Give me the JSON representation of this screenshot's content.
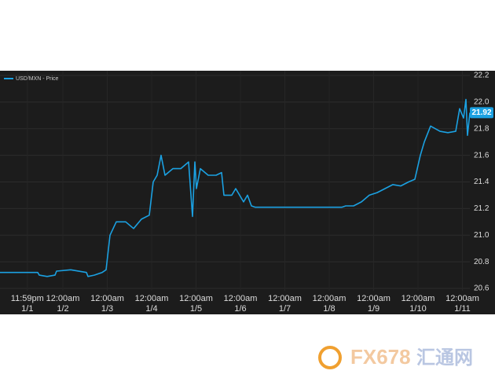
{
  "chart_data": {
    "type": "line",
    "legend": "USD/MXN - Price",
    "series": [
      {
        "name": "USD/MXN - Price",
        "color": "#1ba1e2",
        "x": [
          0.584,
          1.434,
          1.469,
          1.646,
          1.823,
          1.858,
          2.177,
          2.531,
          2.566,
          2.708,
          2.885,
          2.973,
          3.062,
          3.204,
          3.416,
          3.593,
          3.77,
          3.947,
          4.035,
          4.124,
          4.212,
          4.301,
          4.478,
          4.655,
          4.832,
          4.92,
          4.973,
          5.009,
          5.097,
          5.274,
          5.451,
          5.575,
          5.628,
          5.805,
          5.894,
          6.071,
          6.159,
          6.248,
          6.336,
          8.283,
          8.372,
          8.549,
          8.726,
          8.903,
          9.08,
          9.257,
          9.434,
          9.611,
          9.788,
          9.929,
          10.053,
          10.142,
          10.283,
          10.496,
          10.673,
          10.85,
          10.938,
          11.027,
          11.08,
          11.115,
          11.168
        ],
        "values": [
          20.72,
          20.72,
          20.7,
          20.69,
          20.7,
          20.73,
          20.74,
          20.72,
          20.69,
          20.7,
          20.72,
          20.74,
          21.0,
          21.1,
          21.1,
          21.05,
          21.12,
          21.15,
          21.4,
          21.45,
          21.6,
          21.45,
          21.5,
          21.5,
          21.55,
          21.14,
          21.55,
          21.35,
          21.5,
          21.45,
          21.45,
          21.47,
          21.3,
          21.3,
          21.35,
          21.25,
          21.3,
          21.22,
          21.21,
          21.21,
          21.22,
          21.22,
          21.25,
          21.3,
          21.32,
          21.35,
          21.38,
          21.37,
          21.4,
          21.42,
          21.6,
          21.7,
          21.82,
          21.78,
          21.77,
          21.78,
          21.95,
          21.88,
          22.02,
          21.75,
          21.92
        ]
      }
    ],
    "last_price": 21.92,
    "xlim": [
      0.584,
      11.168
    ],
    "xticks": [
      {
        "value": 1.2,
        "label": [
          "11:59pm",
          "1/1"
        ]
      },
      {
        "value": 2,
        "label": [
          "12:00am",
          "1/2"
        ]
      },
      {
        "value": 3,
        "label": [
          "12:00am",
          "1/3"
        ]
      },
      {
        "value": 4,
        "label": [
          "12:00am",
          "1/4"
        ]
      },
      {
        "value": 5,
        "label": [
          "12:00am",
          "1/5"
        ]
      },
      {
        "value": 6,
        "label": [
          "12:00am",
          "1/6"
        ]
      },
      {
        "value": 7,
        "label": [
          "12:00am",
          "1/7"
        ]
      },
      {
        "value": 8,
        "label": [
          "12:00am",
          "1/8"
        ]
      },
      {
        "value": 9,
        "label": [
          "12:00am",
          "1/9"
        ]
      },
      {
        "value": 10,
        "label": [
          "12:00am",
          "1/10"
        ]
      },
      {
        "value": 11,
        "label": [
          "12:00am",
          "1/11"
        ]
      }
    ],
    "ylim": [
      20.6,
      22.2
    ],
    "yticks": [
      {
        "value": 20.6,
        "label": "20.6"
      },
      {
        "value": 20.8,
        "label": "20.8"
      },
      {
        "value": 21.0,
        "label": "21.0"
      },
      {
        "value": 21.2,
        "label": "21.2"
      },
      {
        "value": 21.4,
        "label": "21.4"
      },
      {
        "value": 21.6,
        "label": "21.6"
      },
      {
        "value": 21.8,
        "label": "21.8"
      },
      {
        "value": 22.0,
        "label": "22.0"
      },
      {
        "value": 22.2,
        "label": "22.2"
      }
    ],
    "grid": true
  },
  "watermark": {
    "brand": "FX678",
    "name": "汇通网"
  }
}
